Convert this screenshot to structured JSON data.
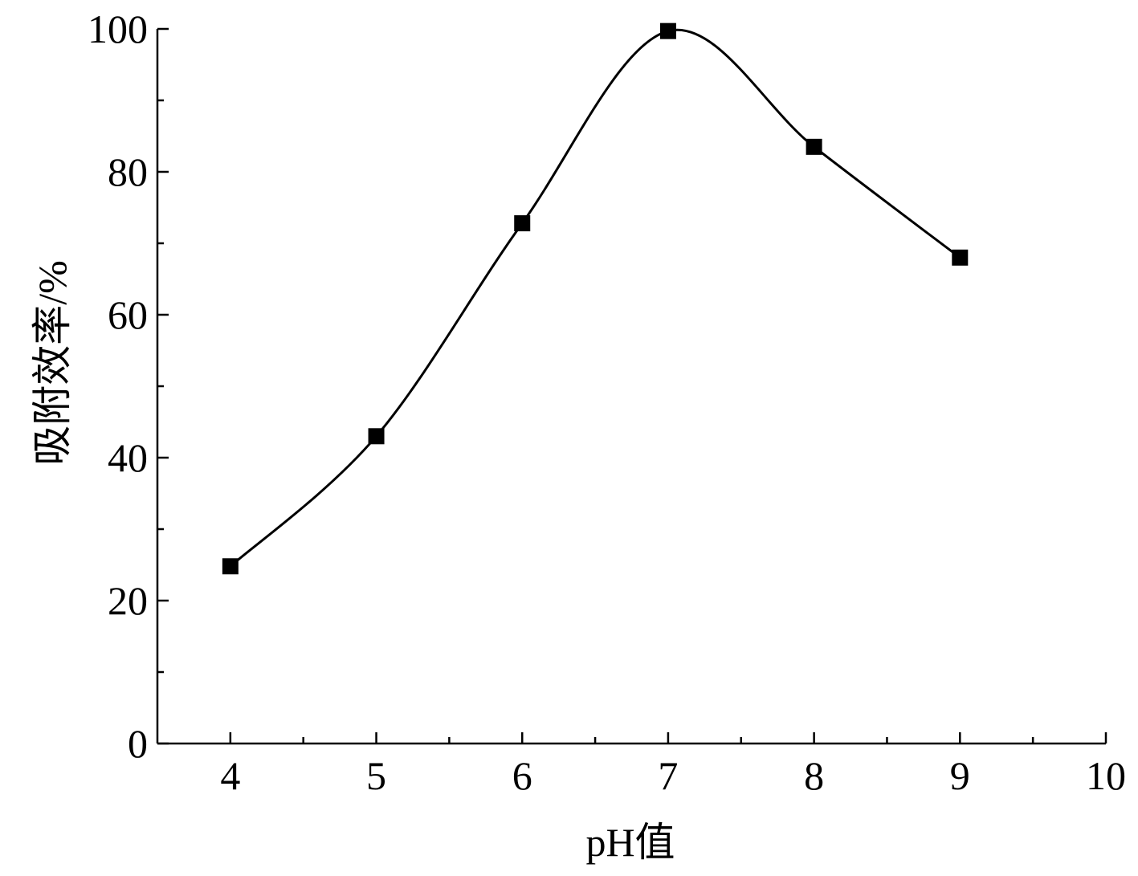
{
  "chart_data": {
    "type": "line",
    "title": "",
    "xlabel": "pH值",
    "ylabel": "吸附效率/%",
    "xlim": [
      3.5,
      10
    ],
    "ylim": [
      0,
      100
    ],
    "x_major_ticks": [
      4,
      5,
      6,
      7,
      8,
      9,
      10
    ],
    "x_minor_ticks": [
      4.5,
      5.5,
      6.5,
      7.5,
      8.5,
      9.5
    ],
    "y_major_ticks": [
      0,
      20,
      40,
      60,
      80,
      100
    ],
    "y_minor_ticks": [
      10,
      30,
      50,
      70,
      90
    ],
    "grid": false,
    "line_style": "smooth",
    "marker": "square",
    "color": "#000000",
    "series": [
      {
        "x": [
          4,
          5,
          6,
          7,
          8,
          9
        ],
        "y": [
          24.8,
          43.0,
          72.8,
          99.7,
          83.5,
          68.0
        ]
      }
    ]
  }
}
